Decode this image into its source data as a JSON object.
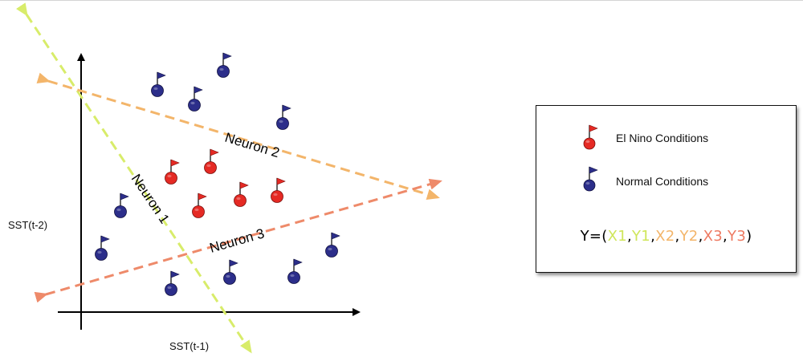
{
  "axes": {
    "x_label": "SST(t-1)",
    "y_label": "SST(t-2)"
  },
  "neurons": {
    "neuron1": "Neuron 1",
    "neuron2": "Neuron 2",
    "neuron3": "Neuron 3"
  },
  "legend": {
    "el_nino_label": "El Nino Conditions",
    "normal_label": "Normal Conditions",
    "formula": {
      "prefix": "Y=(",
      "x1": "X1",
      "sep1": ",",
      "y1": "Y1",
      "sep2": ",",
      "x2": "X2",
      "sep3": ",",
      "y2": "Y2",
      "sep4": ",",
      "x3": "X3",
      "sep5": ",",
      "y3": "Y3",
      "suffix": ")"
    }
  },
  "colors": {
    "neuron1": "#d8ec6a",
    "neuron2": "#f3b56a",
    "neuron3": "#ee8a6a",
    "el_nino": "#e52a24",
    "normal": "#2c2e8a"
  },
  "icons": {
    "el_nino_marker": "red-flag-pin-icon",
    "normal_marker": "blue-flag-pin-icon"
  }
}
